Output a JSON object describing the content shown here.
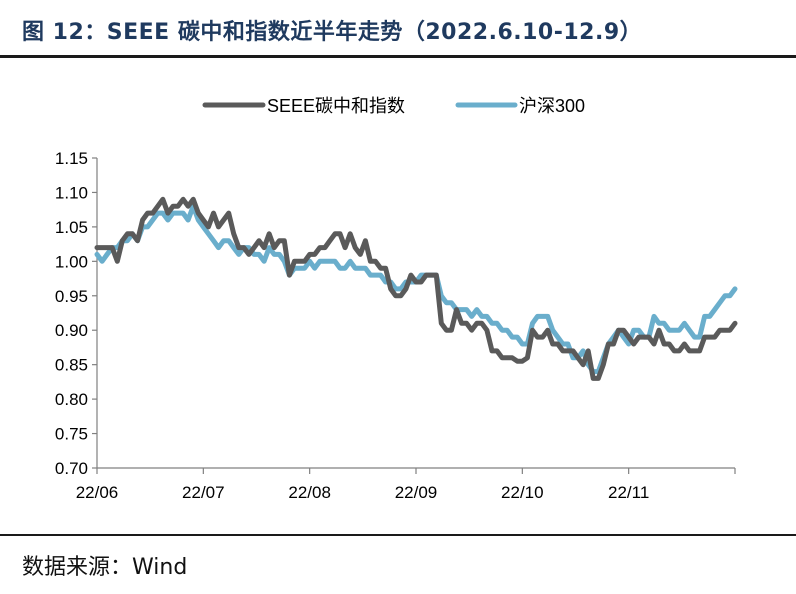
{
  "header": {
    "title": "图 12：SEEE 碳中和指数近半年走势（2022.6.10-12.9）"
  },
  "footer": {
    "source": "数据来源：Wind"
  },
  "colors": {
    "seee": "#5a5a5a",
    "hs300": "#6aaecc",
    "axis": "#808080"
  },
  "chart_data": {
    "type": "line",
    "title": "SEEE 碳中和指数近半年走势（2022.6.10-12.9）",
    "xlabel": "",
    "ylabel": "",
    "ylim": [
      0.7,
      1.15
    ],
    "yticks": [
      "1.15",
      "1.10",
      "1.05",
      "1.00",
      "0.95",
      "0.90",
      "0.85",
      "0.80",
      "0.75",
      "0.70"
    ],
    "ytick_values": [
      1.15,
      1.1,
      1.05,
      1.0,
      0.95,
      0.9,
      0.85,
      0.8,
      0.75,
      0.7
    ],
    "xticks": [
      "22/06",
      "22/07",
      "22/08",
      "22/09",
      "22/10",
      "22/11"
    ],
    "xtick_positions": [
      0,
      21,
      42,
      63,
      84,
      105
    ],
    "xlim": [
      0,
      126
    ],
    "legend_position": "top-center",
    "series": [
      {
        "name": "SEEE碳中和指数",
        "color": "#5a5a5a",
        "values": [
          1.02,
          1.02,
          1.02,
          1.02,
          1.0,
          1.03,
          1.04,
          1.04,
          1.03,
          1.06,
          1.07,
          1.07,
          1.08,
          1.09,
          1.07,
          1.08,
          1.08,
          1.09,
          1.08,
          1.09,
          1.07,
          1.06,
          1.05,
          1.07,
          1.05,
          1.06,
          1.07,
          1.04,
          1.02,
          1.02,
          1.01,
          1.02,
          1.03,
          1.02,
          1.04,
          1.02,
          1.03,
          1.03,
          0.98,
          1.0,
          1.0,
          1.0,
          1.01,
          1.01,
          1.02,
          1.02,
          1.03,
          1.04,
          1.04,
          1.02,
          1.04,
          1.02,
          1.01,
          1.03,
          1.0,
          1.0,
          0.99,
          0.99,
          0.96,
          0.95,
          0.95,
          0.96,
          0.98,
          0.97,
          0.97,
          0.98,
          0.98,
          0.98,
          0.91,
          0.9,
          0.9,
          0.93,
          0.91,
          0.91,
          0.9,
          0.91,
          0.91,
          0.9,
          0.87,
          0.87,
          0.86,
          0.86,
          0.86,
          0.855,
          0.855,
          0.86,
          0.9,
          0.89,
          0.89,
          0.9,
          0.88,
          0.88,
          0.87,
          0.87,
          0.87,
          0.86,
          0.85,
          0.87,
          0.83,
          0.83,
          0.85,
          0.88,
          0.88,
          0.9,
          0.9,
          0.89,
          0.88,
          0.89,
          0.89,
          0.89,
          0.88,
          0.9,
          0.88,
          0.88,
          0.87,
          0.87,
          0.88,
          0.87,
          0.87,
          0.87,
          0.89,
          0.89,
          0.89,
          0.9,
          0.9,
          0.9,
          0.91
        ]
      },
      {
        "name": "沪深300",
        "color": "#6aaecc",
        "values": [
          1.01,
          1.0,
          1.01,
          1.02,
          1.02,
          1.03,
          1.03,
          1.04,
          1.03,
          1.05,
          1.05,
          1.06,
          1.07,
          1.07,
          1.06,
          1.07,
          1.07,
          1.07,
          1.06,
          1.08,
          1.06,
          1.05,
          1.04,
          1.03,
          1.02,
          1.03,
          1.03,
          1.02,
          1.01,
          1.02,
          1.02,
          1.01,
          1.01,
          1.0,
          1.02,
          1.01,
          1.01,
          1.0,
          0.98,
          0.99,
          0.99,
          0.99,
          1.0,
          0.99,
          1.0,
          1.0,
          1.0,
          1.0,
          0.99,
          0.99,
          1.0,
          0.99,
          0.99,
          0.99,
          0.98,
          0.98,
          0.98,
          0.97,
          0.97,
          0.96,
          0.96,
          0.97,
          0.97,
          0.97,
          0.98,
          0.98,
          0.98,
          0.98,
          0.95,
          0.94,
          0.94,
          0.93,
          0.93,
          0.93,
          0.92,
          0.93,
          0.92,
          0.92,
          0.91,
          0.91,
          0.9,
          0.9,
          0.89,
          0.89,
          0.88,
          0.88,
          0.91,
          0.92,
          0.92,
          0.92,
          0.9,
          0.89,
          0.88,
          0.88,
          0.86,
          0.86,
          0.87,
          0.85,
          0.84,
          0.84,
          0.86,
          0.88,
          0.89,
          0.9,
          0.89,
          0.88,
          0.9,
          0.9,
          0.89,
          0.89,
          0.92,
          0.91,
          0.91,
          0.9,
          0.9,
          0.9,
          0.91,
          0.9,
          0.89,
          0.89,
          0.92,
          0.92,
          0.93,
          0.94,
          0.95,
          0.95,
          0.96
        ]
      }
    ]
  }
}
